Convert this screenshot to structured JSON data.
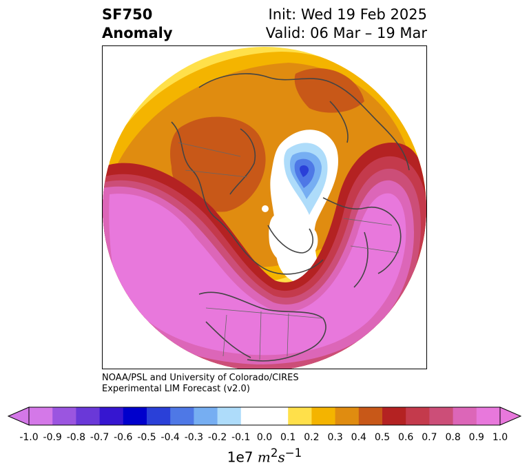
{
  "header": {
    "variable": "SF750",
    "kind": "Anomaly",
    "init": "Init: Wed 19 Feb 2025",
    "valid": "Valid: 06 Mar – 19 Mar"
  },
  "credit": {
    "line1": "NOAA/PSL and University of Colorado/CIRES",
    "line2": "Experimental LIM Forecast (v2.0)"
  },
  "colorbar": {
    "labels": [
      "-1.0",
      "-0.9",
      "-0.8",
      "-0.7",
      "-0.6",
      "-0.5",
      "-0.4",
      "-0.3",
      "-0.2",
      "-0.1",
      "0.0",
      "0.1",
      "0.2",
      "0.3",
      "0.4",
      "0.5",
      "0.6",
      "0.7",
      "0.8",
      "0.9",
      "1.0"
    ],
    "colors": [
      "#d478e8",
      "#9b55e0",
      "#6a38d8",
      "#3616d0",
      "#0000cc",
      "#2a40d8",
      "#4e78e6",
      "#76aef2",
      "#aedcfa",
      "#ffffff",
      "#ffffff",
      "#ffe04a",
      "#f4b400",
      "#e08c10",
      "#c85818",
      "#b42222",
      "#c43a4c",
      "#cc4e78",
      "#dc66b8",
      "#e878dc"
    ],
    "units_prefix": "1e7",
    "units_m": "m",
    "units_m_exp": "2",
    "units_s": "s",
    "units_s_exp": "−1"
  },
  "map": {
    "palette": {
      "light_yellow": "#ffe04a",
      "yellow": "#f4b400",
      "orange": "#e08c10",
      "dark_orange": "#c85818",
      "red": "#b42222",
      "magenta_red": "#c43a4c",
      "pink_dark": "#cc4e78",
      "pink": "#dc66b8",
      "magenta": "#e878dc",
      "light_blue": "#aedcfa",
      "blue_mid": "#76aef2",
      "blue": "#4e78e6",
      "blue_dark": "#2a40d8",
      "coast": "#444444"
    }
  }
}
